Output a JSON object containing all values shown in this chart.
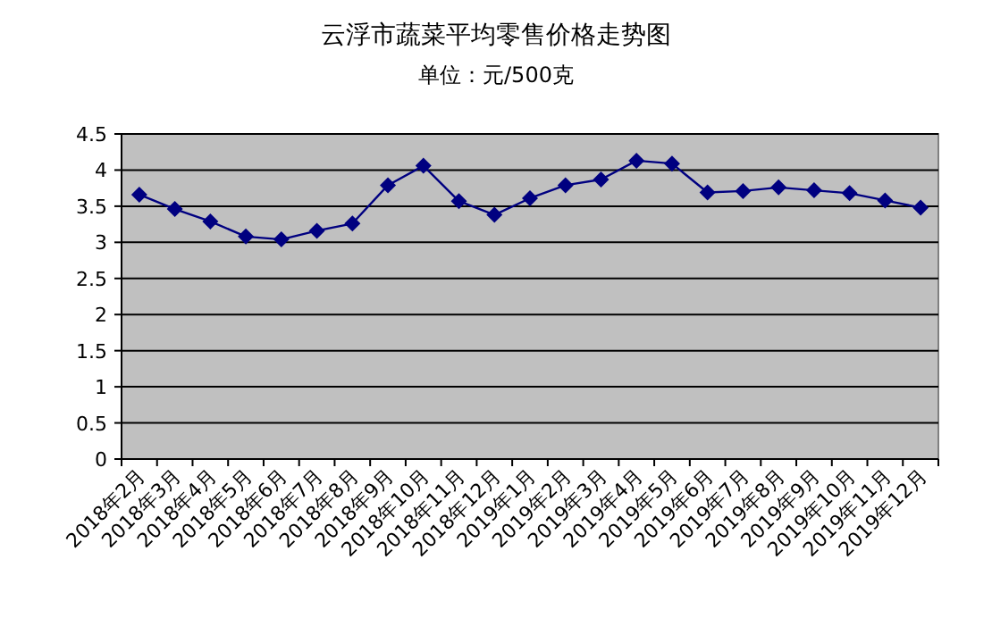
{
  "chart_data": {
    "type": "line",
    "title": "云浮市蔬菜平均零售价格走势图",
    "subtitle": "单位：元/500克",
    "categories": [
      "2018年2月",
      "2018年3月",
      "2018年4月",
      "2018年5月",
      "2018年6月",
      "2018年7月",
      "2018年8月",
      "2018年9月",
      "2018年10月",
      "2018年11月",
      "2018年12月",
      "2019年1月",
      "2019年2月",
      "2019年3月",
      "2019年4月",
      "2019年5月",
      "2019年6月",
      "2019年7月",
      "2019年8月",
      "2019年9月",
      "2019年10月",
      "2019年11月",
      "2019年12月"
    ],
    "series": [
      {
        "color": "#000080",
        "values": [
          3.66,
          3.46,
          3.29,
          3.08,
          3.04,
          3.16,
          3.26,
          3.79,
          4.06,
          3.57,
          3.38,
          3.61,
          3.79,
          3.87,
          4.13,
          4.09,
          3.69,
          3.71,
          3.76,
          3.72,
          3.68,
          3.58,
          3.48
        ]
      }
    ],
    "ylim": [
      0,
      4.5
    ],
    "yticks": [
      0,
      0.5,
      1,
      1.5,
      2,
      2.5,
      3,
      3.5,
      4,
      4.5
    ],
    "grid": "y",
    "marker": "diamond",
    "line_style": "solid"
  }
}
